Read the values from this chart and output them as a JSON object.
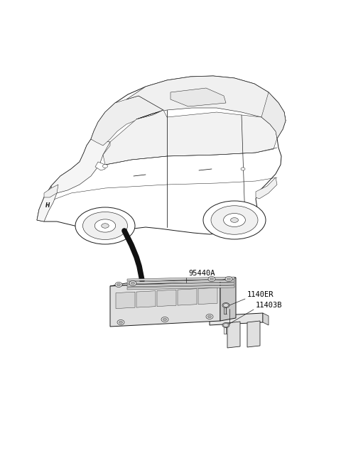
{
  "background_color": "#ffffff",
  "label_95440A": "95440A",
  "label_1140ER": "1140ER",
  "label_11403B": "11403B",
  "label_color": "#000000",
  "label_fontsize": 7.5,
  "line_color": "#1a1a1a",
  "line_width": 0.7,
  "figsize": [
    4.8,
    6.55
  ],
  "dpi": 100,
  "car_color": "#ffffff",
  "tcu_top_color": "#e5e5e5",
  "tcu_front_color": "#d8d8d8",
  "tcu_right_color": "#c8c8c8",
  "bracket_color": "#e0e0e0",
  "cable_color": "#111111"
}
